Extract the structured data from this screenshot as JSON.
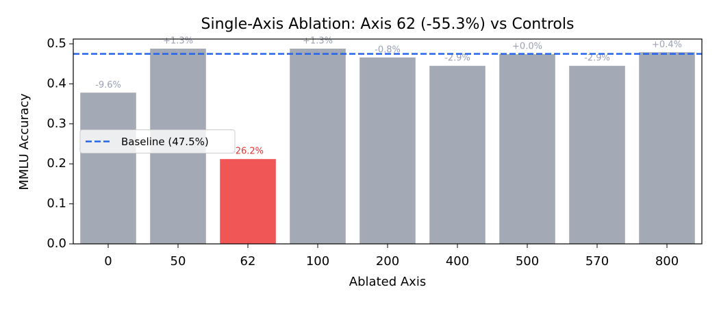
{
  "chart_data": {
    "type": "bar",
    "title": "Single-Axis Ablation: Axis 62 (-55.3%) vs Controls",
    "x_label": "Ablated Axis",
    "y_label": "MMLU Accuracy",
    "categories": [
      "0",
      "50",
      "62",
      "100",
      "200",
      "400",
      "500",
      "570",
      "800"
    ],
    "values": [
      0.378,
      0.488,
      0.212,
      0.488,
      0.466,
      0.445,
      0.474,
      0.445,
      0.479
    ],
    "colors": [
      "#a4aab5",
      "#a4aab5",
      "#f05656",
      "#a4aab5",
      "#a4aab5",
      "#a4aab5",
      "#a4aab5",
      "#a4aab5",
      "#a4aab5"
    ],
    "bar_annotations": [
      "-9.6%",
      "+1.3%",
      "-26.2%",
      "+1.3%",
      "-0.8%",
      "-2.9%",
      "+0.0%",
      "-2.9%",
      "+0.4%"
    ],
    "annotation_colors": [
      "#9ba1b5",
      "#9ba1b5",
      "#e53535",
      "#9ba1b5",
      "#9ba1b5",
      "#9ba1b5",
      "#9ba1b5",
      "#9ba1b5",
      "#9ba1b5"
    ],
    "baseline": {
      "value": 0.475,
      "label": "Baseline (47.5%)",
      "color": "#2563eb"
    },
    "ylim": [
      0,
      0.512
    ],
    "yticks": [
      {
        "value": 0,
        "label": "0.0"
      },
      0.1,
      0.2,
      0.3,
      0.4,
      0.5
    ],
    "legend": "center left",
    "grid": false
  }
}
